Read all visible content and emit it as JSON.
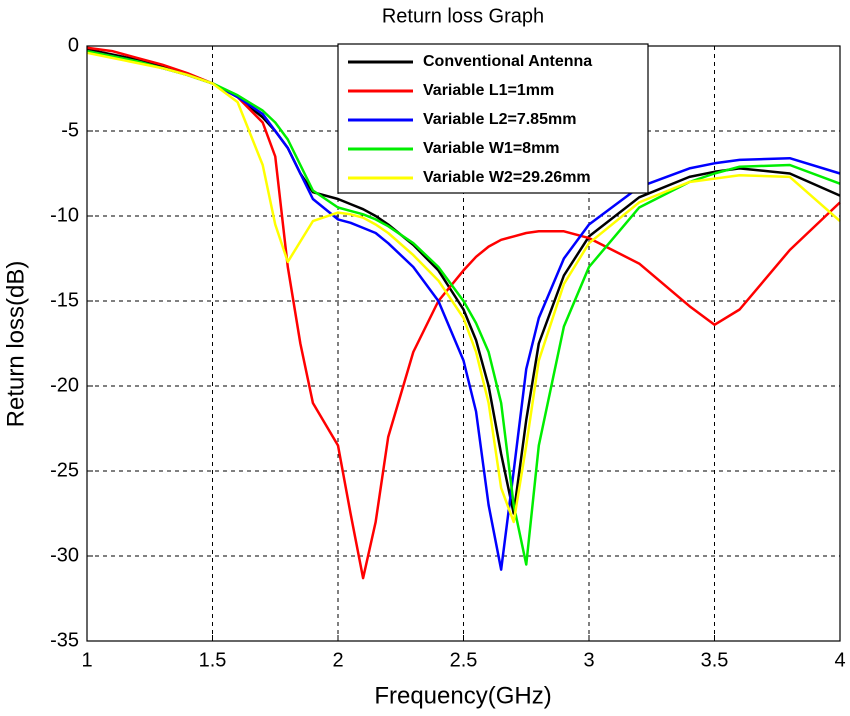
{
  "chart_data": {
    "type": "line",
    "title": "Return loss Graph",
    "x_label": "Frequency(GHz)",
    "y_label": "Return loss(dB)",
    "x": [
      1,
      1.1,
      1.2,
      1.3,
      1.4,
      1.5,
      1.6,
      1.7,
      1.75,
      1.8,
      1.85,
      1.9,
      2.0,
      2.05,
      2.1,
      2.15,
      2.2,
      2.3,
      2.4,
      2.5,
      2.55,
      2.6,
      2.65,
      2.7,
      2.75,
      2.8,
      2.9,
      3.0,
      3.2,
      3.4,
      3.5,
      3.6,
      3.8,
      4.0
    ],
    "series": [
      {
        "name": "Conventional Antenna",
        "color": "#000000",
        "values": [
          -0.2,
          -0.5,
          -0.8,
          -1.2,
          -1.7,
          -2.2,
          -3,
          -4.2,
          -5,
          -6,
          -7.5,
          -8.6,
          -9,
          -9.3,
          -9.6,
          -10,
          -10.5,
          -11.7,
          -13.2,
          -15.5,
          -17.3,
          -20,
          -24,
          -27.5,
          -22,
          -17.5,
          -13.5,
          -11.2,
          -8.9,
          -7.7,
          -7.4,
          -7.2,
          -7.5,
          -8.8
        ]
      },
      {
        "name": "Variable L1=1mm",
        "color": "#ff0000",
        "values": [
          -0.1,
          -0.3,
          -0.7,
          -1.1,
          -1.6,
          -2.2,
          -3,
          -4.5,
          -6.5,
          -13,
          -17.5,
          -21,
          -23.5,
          -27.5,
          -31.3,
          -28,
          -23,
          -18,
          -15,
          -13.2,
          -12.4,
          -11.8,
          -11.4,
          -11.2,
          -11,
          -10.9,
          -10.9,
          -11.3,
          -12.8,
          -15.3,
          -16.4,
          -15.5,
          -12,
          -9.2
        ]
      },
      {
        "name": "Variable L2=7.85mm",
        "color": "#0000ff",
        "values": [
          -0.3,
          -0.6,
          -0.9,
          -1.3,
          -1.7,
          -2.2,
          -3,
          -4,
          -5,
          -6,
          -7.5,
          -9,
          -10.2,
          -10.4,
          -10.7,
          -11,
          -11.6,
          -13,
          -15,
          -18.5,
          -21.5,
          -27,
          -30.8,
          -25,
          -19,
          -16,
          -12.5,
          -10.5,
          -8.3,
          -7.2,
          -6.9,
          -6.7,
          -6.6,
          -7.5
        ]
      },
      {
        "name": "Variable W1=8mm",
        "color": "#00ee00",
        "values": [
          -0.3,
          -0.6,
          -0.9,
          -1.3,
          -1.7,
          -2.2,
          -2.9,
          -3.8,
          -4.5,
          -5.5,
          -7,
          -8.5,
          -9.5,
          -9.7,
          -9.9,
          -10.2,
          -10.6,
          -11.6,
          -13,
          -15,
          -16.3,
          -18,
          -21,
          -27,
          -30.5,
          -23.5,
          -16.5,
          -13,
          -9.5,
          -8,
          -7.5,
          -7.1,
          -7,
          -8.1
        ]
      },
      {
        "name": "Variable W2=29.26mm",
        "color": "#ffff00",
        "values": [
          -0.4,
          -0.7,
          -1,
          -1.3,
          -1.7,
          -2.2,
          -3.3,
          -7,
          -10.5,
          -12.7,
          -11.5,
          -10.3,
          -9.8,
          -9.9,
          -10.1,
          -10.5,
          -11,
          -12.3,
          -13.8,
          -16,
          -18,
          -21,
          -26,
          -28,
          -23.5,
          -18.5,
          -14,
          -11.6,
          -9.2,
          -8,
          -7.8,
          -7.6,
          -7.7,
          -10.3
        ]
      }
    ],
    "xlim": [
      1,
      4
    ],
    "ylim": [
      -35,
      0
    ],
    "xticks": [
      1,
      1.5,
      2,
      2.5,
      3,
      3.5,
      4
    ],
    "yticks": [
      0,
      -5,
      -10,
      -15,
      -20,
      -25,
      -30,
      -35
    ],
    "grid": true
  }
}
